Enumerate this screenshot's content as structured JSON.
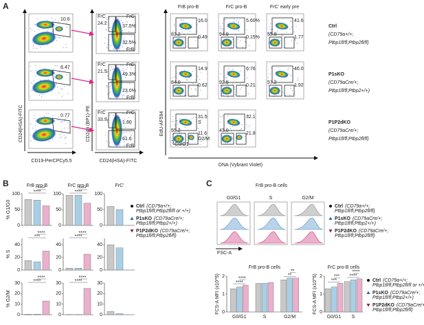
{
  "panel_a": {
    "label": "A",
    "column_titles": [
      "FrB pro-B",
      "FrC pro-B",
      "FrC' early pre"
    ],
    "axes": {
      "y1": "CD24(HSA)-FITC",
      "x1": "CD19-PerCPCy5.5",
      "y2": "CD249 (BP1)-PE",
      "x2": "CD24(HSA)-FITC",
      "y3": "EdU-AF594",
      "x3": "DNA (Vybrant Violet)"
    },
    "gate_labels": {
      "frc": "FrC",
      "frc_prime": "FrC'",
      "frb": "FrB",
      "s": "S",
      "g2m": "G2/M",
      "g0g1": "G0/G1"
    },
    "rows": [
      {
        "genotype": [
          "Ctrl",
          "(CD79a+/+;",
          "Ptbp1fl/fl;Ptbp2fl/fl)"
        ],
        "col1": [
          "10.6"
        ],
        "col2": [
          "24.2",
          "37.5%",
          "32.5%"
        ],
        "col3": [
          "16.0",
          "0.49",
          "83.2"
        ],
        "col4": [
          "5.60%",
          "0.15%",
          "94.0"
        ],
        "col5": [
          "41.6",
          "1.77",
          "55.8"
        ]
      },
      {
        "genotype": [
          "P1sKO",
          "(CD79aCre/+;",
          "Ptbp1fl/fl;Ptbp2+/+)"
        ],
        "col1": [
          "8.47"
        ],
        "col2": [
          "21.5",
          "49.3%",
          "23.0%"
        ],
        "col3": [
          "14.9",
          "0.62",
          "84.0"
        ],
        "col4": [
          "6.76",
          "0.21",
          "92.5"
        ],
        "col5": [
          "40.0",
          "1.92",
          "57.2"
        ]
      },
      {
        "genotype": [
          "P1P2dKO",
          "(CD79aCre/+;",
          "Ptbp1fl/fl;Ptbp2fl/fl)"
        ],
        "col1": [
          "0.77"
        ],
        "col2": [
          "33.9",
          "1.60",
          "61.6"
        ],
        "col3": [
          "31.5",
          "11.6",
          "55.2"
        ],
        "col4": [
          "32.1",
          "21.8",
          "43.0"
        ]
      }
    ]
  },
  "panel_b": {
    "label": "B",
    "columns": [
      "FrB pro-B",
      "FrC pro-B",
      "FrC'"
    ],
    "series": [
      {
        "name": "Ctrl",
        "color": "#c8c8c8"
      },
      {
        "name": "P1sKO",
        "color": "#a9cfe6"
      },
      {
        "name": "P1P2dKO",
        "color": "#eab0cc"
      }
    ],
    "rows": [
      {
        "ylabel": "% G1/G0",
        "ylim": [
          0,
          100
        ],
        "yticks": [
          0,
          50,
          100
        ],
        "charts": [
          {
            "values": [
              82,
              80,
              62
            ],
            "sig": [
              "****",
              "****"
            ]
          },
          {
            "values": [
              95,
              95,
              70
            ],
            "sig": [
              "****",
              "****"
            ]
          },
          {
            "values": [
              60,
              50
            ],
            "sig": []
          }
        ]
      },
      {
        "ylabel": "% S",
        "ylim": [
          0,
          50
        ],
        "yticks": [
          0,
          20,
          40
        ],
        "charts": [
          {
            "values": [
              15,
              13,
              30
            ],
            "sig": [
              "***",
              "****"
            ]
          },
          {
            "values": [
              3,
              3,
              25
            ],
            "sig": [
              "****",
              "****"
            ]
          },
          {
            "values": [
              40,
              35
            ],
            "sig": []
          }
        ]
      },
      {
        "ylabel": "% G2/M",
        "ylim": [
          0,
          30
        ],
        "yticks": [
          0,
          10,
          20,
          30
        ],
        "charts": [
          {
            "values": [
              0.5,
              0.5,
              13
            ],
            "sig": [
              "****",
              "****"
            ]
          },
          {
            "values": [
              0.2,
              0.2,
              25
            ],
            "sig": [
              "****",
              "****"
            ]
          },
          {
            "values": [
              3,
              1
            ],
            "sig": []
          }
        ]
      }
    ],
    "legend": [
      {
        "name": "Ctrl",
        "detail": [
          "(CD79a+/+;",
          "Ptbp1fl/fl;Ptbp2fl/fl or +/+)"
        ]
      },
      {
        "name": "P1sKO",
        "detail": [
          "(CD79aCre/+;",
          "Ptbp1fl/fl;Ptbp2+/+)"
        ]
      },
      {
        "name": "P1P2dKO",
        "detail": [
          "(CD79aCre/+;",
          "Ptbp1fl/fl;Ptbp2fl/fl)"
        ]
      }
    ]
  },
  "panel_c": {
    "label": "C",
    "hist_title": "FrB pro-B cells",
    "hist_columns": [
      "G0/G1",
      "S",
      "G2/M"
    ],
    "hist_xlabel": "FSC-A",
    "legend_top": [
      {
        "name": "Ctrl",
        "detail": [
          "(CD79a+/+;",
          "Ptbp1fl/fl;Ptbp2fl/fl)"
        ]
      },
      {
        "name": "P1sKO",
        "detail": [
          "(CD79aCre/+;",
          "Ptbp1fl/fl;Ptbp2+/+)"
        ]
      },
      {
        "name": "P1P2dKO",
        "detail": [
          "(CD79aCre/+;",
          "Ptbp1fl/fl;Ptbp2fl/fl)"
        ]
      }
    ],
    "ylabel": "FCS-A MFI (x10^5)",
    "ylim": [
      0,
      2
    ],
    "yticks": [
      0,
      1,
      2
    ],
    "charts": [
      {
        "title": "FrB pro-B cells",
        "categories": [
          "G0/G1",
          "S",
          "G2/M"
        ],
        "values": [
          [
            1.3,
            1.4,
            1.5
          ],
          [
            1.6,
            1.6,
            1.65
          ],
          [
            1.8,
            1.9,
            1.9
          ]
        ],
        "sig": [
          [
            "****",
            "****"
          ],
          [],
          [
            "**",
            "**"
          ]
        ]
      },
      {
        "title": "FrC pro-B cells",
        "categories": [
          "G0/G1",
          "S"
        ],
        "values": [
          [
            1.3,
            1.4,
            1.6
          ],
          [
            1.7,
            1.8,
            1.85
          ]
        ],
        "sig": [
          [
            "***",
            "***"
          ],
          [
            "****",
            "****"
          ]
        ]
      }
    ],
    "legend_bottom": [
      {
        "name": "Ctrl",
        "detail": [
          "(CD79a+/+;",
          "Ptbp1fl/fl;Ptbp2fl/fl or +/+)"
        ]
      },
      {
        "name": "P1sKO",
        "detail": [
          "(CD79aCre/+;",
          "Ptbp1fl/fl;Ptbp2+/+)"
        ]
      },
      {
        "name": "P1P2dKO",
        "detail": [
          "(CD79aCre/+;",
          "Ptbp1fl/fl;Ptbp2fl/fl)"
        ]
      }
    ]
  }
}
